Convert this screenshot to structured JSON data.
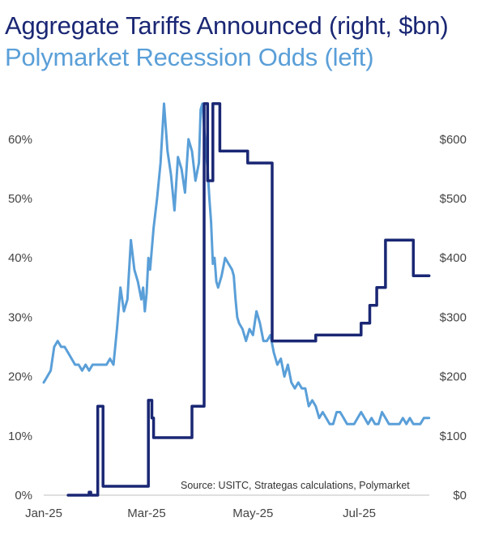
{
  "chart_data": {
    "type": "line",
    "title": "Aggregate Tariffs Announced (right, $bn)",
    "subtitle": "Polymarket Recession Odds (left)",
    "source": "Source: USITC, Strategas calculations, Polymarket",
    "x_ticks": [
      "Jan-25",
      "Mar-25",
      "May-25",
      "Jul-25"
    ],
    "left_axis": {
      "ticks": [
        "0%",
        "10%",
        "20%",
        "30%",
        "40%",
        "50%",
        "60%"
      ],
      "ylim": [
        0,
        65
      ]
    },
    "right_axis": {
      "ticks": [
        "$0",
        "$100",
        "$200",
        "$300",
        "$400",
        "$500",
        "$600"
      ],
      "ylim": [
        0,
        650
      ]
    },
    "grid": false,
    "colors": {
      "tariffs": "#1a2774",
      "recession_odds": "#5a9fd8"
    },
    "series": [
      {
        "name": "Aggregate Tariffs Announced (right, $bn)",
        "axis": "right",
        "x": [
          "2025-01-15",
          "2025-01-25",
          "2025-01-27",
          "2025-01-28",
          "2025-01-31",
          "2025-02-01",
          "2025-02-03",
          "2025-02-04",
          "2025-02-10",
          "2025-03-01",
          "2025-03-02",
          "2025-03-04",
          "2025-03-05",
          "2025-03-15",
          "2025-03-26",
          "2025-03-27",
          "2025-04-02",
          "2025-04-03",
          "2025-04-05",
          "2025-04-07",
          "2025-04-08",
          "2025-04-09",
          "2025-04-10",
          "2025-04-12",
          "2025-04-13",
          "2025-04-14",
          "2025-04-27",
          "2025-04-28",
          "2025-05-02",
          "2025-05-12",
          "2025-05-26",
          "2025-06-06",
          "2025-06-09",
          "2025-06-10",
          "2025-06-12",
          "2025-06-14",
          "2025-06-18",
          "2025-06-25",
          "2025-06-30",
          "2025-07-02",
          "2025-07-07",
          "2025-07-11",
          "2025-07-16",
          "2025-07-21",
          "2025-07-25",
          "2025-08-01",
          "2025-08-10"
        ],
        "values": [
          0,
          0,
          5,
          0,
          0,
          150,
          150,
          15,
          15,
          15,
          160,
          130,
          97,
          97,
          97,
          150,
          150,
          660,
          530,
          530,
          660,
          660,
          660,
          580,
          580,
          580,
          580,
          560,
          560,
          260,
          260,
          270,
          270,
          270,
          270,
          270,
          270,
          270,
          270,
          290,
          320,
          350,
          430,
          430,
          430,
          370,
          370
        ]
      },
      {
        "name": "Polymarket Recession Odds (left)",
        "axis": "left",
        "x": [
          "2025-01-01",
          "2025-01-03",
          "2025-01-05",
          "2025-01-07",
          "2025-01-09",
          "2025-01-11",
          "2025-01-13",
          "2025-01-15",
          "2025-01-17",
          "2025-01-19",
          "2025-01-21",
          "2025-01-23",
          "2025-01-25",
          "2025-01-27",
          "2025-01-29",
          "2025-01-31",
          "2025-02-02",
          "2025-02-04",
          "2025-02-06",
          "2025-02-08",
          "2025-02-10",
          "2025-02-12",
          "2025-02-14",
          "2025-02-16",
          "2025-02-18",
          "2025-02-20",
          "2025-02-22",
          "2025-02-24",
          "2025-02-26",
          "2025-02-27",
          "2025-02-28",
          "2025-03-01",
          "2025-03-02",
          "2025-03-03",
          "2025-03-05",
          "2025-03-07",
          "2025-03-09",
          "2025-03-11",
          "2025-03-13",
          "2025-03-15",
          "2025-03-17",
          "2025-03-19",
          "2025-03-21",
          "2025-03-23",
          "2025-03-25",
          "2025-03-27",
          "2025-03-29",
          "2025-03-31",
          "2025-04-01",
          "2025-04-02",
          "2025-04-03",
          "2025-04-04",
          "2025-04-05",
          "2025-04-06",
          "2025-04-07",
          "2025-04-08",
          "2025-04-09",
          "2025-04-10",
          "2025-04-11",
          "2025-04-13",
          "2025-04-15",
          "2025-04-17",
          "2025-04-19",
          "2025-04-20",
          "2025-04-21",
          "2025-04-22",
          "2025-04-23",
          "2025-04-25",
          "2025-04-27",
          "2025-04-29",
          "2025-05-01",
          "2025-05-03",
          "2025-05-05",
          "2025-05-07",
          "2025-05-09",
          "2025-05-11",
          "2025-05-13",
          "2025-05-15",
          "2025-05-17",
          "2025-05-19",
          "2025-05-21",
          "2025-05-23",
          "2025-05-25",
          "2025-05-27",
          "2025-05-29",
          "2025-05-31",
          "2025-06-02",
          "2025-06-04",
          "2025-06-06",
          "2025-06-08",
          "2025-06-10",
          "2025-06-12",
          "2025-06-14",
          "2025-06-16",
          "2025-06-18",
          "2025-06-20",
          "2025-06-22",
          "2025-06-24",
          "2025-06-26",
          "2025-06-28",
          "2025-06-30",
          "2025-07-02",
          "2025-07-04",
          "2025-07-06",
          "2025-07-08",
          "2025-07-10",
          "2025-07-12",
          "2025-07-14",
          "2025-07-16",
          "2025-07-18",
          "2025-07-20",
          "2025-07-22",
          "2025-07-24",
          "2025-07-26",
          "2025-07-28",
          "2025-07-30",
          "2025-08-01",
          "2025-08-03",
          "2025-08-05",
          "2025-08-07",
          "2025-08-08",
          "2025-08-10"
        ],
        "values": [
          19,
          20,
          21,
          25,
          26,
          25,
          25,
          24,
          23,
          22,
          22,
          21,
          22,
          21,
          22,
          22,
          22,
          22,
          22,
          23,
          22,
          28,
          35,
          31,
          33,
          43,
          38,
          36,
          33,
          35,
          31,
          34,
          40,
          38,
          45,
          50,
          56,
          66,
          58,
          54,
          48,
          57,
          55,
          51,
          60,
          58,
          53,
          56,
          65,
          66,
          62,
          58,
          55,
          50,
          46,
          39,
          40,
          36,
          35,
          37,
          40,
          39,
          38,
          37,
          33,
          30,
          29,
          28,
          26,
          28,
          27,
          31,
          29,
          26,
          26,
          27,
          24,
          22,
          23,
          20,
          22,
          19,
          18,
          19,
          18,
          18,
          15,
          16,
          15,
          13,
          14,
          13,
          12,
          12,
          14,
          14,
          13,
          12,
          12,
          12,
          13,
          14,
          13,
          12,
          13,
          12,
          12,
          14,
          13,
          12,
          12,
          12,
          12,
          13,
          12,
          13,
          12,
          12,
          12,
          13,
          13,
          13
        ]
      }
    ]
  }
}
